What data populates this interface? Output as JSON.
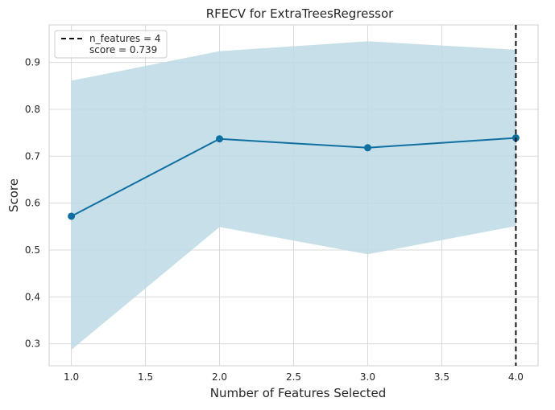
{
  "chart_data": {
    "type": "line",
    "title": "RFECV for ExtraTreesRegressor",
    "xlabel": "Number of Features Selected",
    "ylabel": "Score",
    "xlim": [
      0.85,
      4.15
    ],
    "ylim": [
      0.253,
      0.98
    ],
    "x_ticks": [
      1.0,
      1.5,
      2.0,
      2.5,
      3.0,
      3.5,
      4.0
    ],
    "x_tick_labels": [
      "1.0",
      "1.5",
      "2.0",
      "2.5",
      "3.0",
      "3.5",
      "4.0"
    ],
    "y_ticks": [
      0.3,
      0.4,
      0.5,
      0.6,
      0.7,
      0.8,
      0.9
    ],
    "y_tick_labels": [
      "0.3",
      "0.4",
      "0.5",
      "0.6",
      "0.7",
      "0.8",
      "0.9"
    ],
    "grid": true,
    "legend_position": "top-left",
    "series": [
      {
        "x": [
          1,
          2,
          3,
          4
        ],
        "y": [
          0.572,
          0.737,
          0.718,
          0.739
        ],
        "upper": [
          0.861,
          0.924,
          0.945,
          0.927
        ],
        "lower": [
          0.287,
          0.549,
          0.491,
          0.551
        ],
        "color": "#0f6fa0",
        "band_color": "#bcd9e5"
      }
    ],
    "vline": {
      "x": 4,
      "color": "#111111",
      "legend_line1": "n_features = 4",
      "legend_line2": "score = 0.739"
    }
  }
}
